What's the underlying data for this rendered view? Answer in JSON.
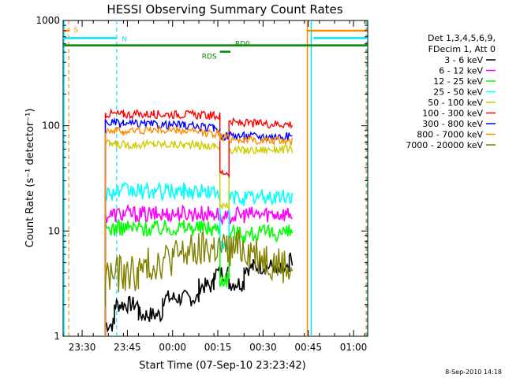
{
  "chart_data": {
    "type": "line",
    "title": "HESSI Observing Summary Count Rates",
    "xlabel": "Start Time (07-Sep-10 23:23:42)",
    "ylabel": "Count Rate (s⁻¹ detector⁻¹)",
    "yscale": "log",
    "ylim": [
      1,
      1000
    ],
    "xlim_minutes_after_start": [
      0,
      101
    ],
    "x_ticks": [
      "23:30",
      "23:45",
      "00:00",
      "00:15",
      "00:30",
      "00:45",
      "01:00"
    ],
    "x_tick_minutes_after_start": [
      6.3,
      21.3,
      36.3,
      51.3,
      66.3,
      81.3,
      96.3
    ],
    "y_ticks": [
      "1",
      "10",
      "100",
      "1000"
    ],
    "y_tick_values": [
      1,
      10,
      100,
      1000
    ],
    "legend_header": [
      "Det 1,3,4,5,6,9,",
      "FDecim 1, Att 0"
    ],
    "legend_position": "right",
    "flags": {
      "saa": {
        "label": "S",
        "color": "#ff8c00",
        "segments": [
          [
            0,
            2.2
          ],
          [
            81,
            101
          ]
        ],
        "level": 800
      },
      "night": {
        "label": "N",
        "color": "#00e5ff",
        "segments": [
          [
            0,
            17.8
          ],
          [
            83,
            101
          ]
        ],
        "level": 680
      },
      "rd0": {
        "label": "RD0",
        "color": "#008800",
        "segments": [
          [
            0,
            101
          ]
        ],
        "level": 580
      },
      "rds": {
        "label": "RDS",
        "color": "#008800",
        "segments": [
          [
            52,
            55.5
          ]
        ],
        "level": 505
      }
    },
    "orbit_markers": {
      "solid_cyan_minutes": [
        0,
        82
      ],
      "dashed_cyan_minutes": [
        18,
        101
      ],
      "dashed_orange_minutes": [
        2.4,
        101
      ],
      "solid_orange_minutes": [
        81
      ]
    },
    "series": [
      {
        "name": "3 - 6 keV",
        "color": "#000000",
        "x": [
          14,
          17,
          17,
          25,
          25,
          33,
          33,
          45,
          45,
          50,
          50,
          55,
          55,
          60,
          60,
          63,
          63,
          70,
          70,
          75,
          75,
          76
        ],
        "y": [
          1.3,
          1.3,
          2,
          2,
          1.6,
          1.6,
          2.3,
          2.3,
          3,
          3,
          4,
          4,
          3.2,
          3.2,
          4.5,
          4.5,
          4.6,
          4.6,
          4.1,
          4.1,
          5.5,
          5.5
        ]
      },
      {
        "name": "6 - 12 keV",
        "color": "#ff00ff",
        "x": [
          14,
          20,
          30,
          40,
          50,
          52,
          52,
          55,
          55,
          60,
          70,
          76
        ],
        "y": [
          14,
          14.6,
          14.3,
          14.8,
          14.5,
          14.5,
          13,
          13,
          14,
          14.2,
          14.6,
          14.6
        ]
      },
      {
        "name": "12 - 25 keV",
        "color": "#00ff00",
        "x": [
          14,
          20,
          30,
          40,
          50,
          52,
          52,
          55,
          55,
          60,
          70,
          76
        ],
        "y": [
          10.5,
          10.8,
          10.6,
          10.9,
          10.6,
          10.6,
          3.5,
          3.5,
          9.8,
          9.3,
          9.6,
          9.6
        ]
      },
      {
        "name": "25 - 50 keV",
        "color": "#00ffff",
        "x": [
          14,
          20,
          30,
          40,
          50,
          52,
          52,
          55,
          55,
          60,
          70,
          76
        ],
        "y": [
          23,
          24,
          23.5,
          24,
          23.5,
          23.5,
          6.8,
          6.8,
          21,
          20.5,
          21,
          21
        ]
      },
      {
        "name": "50 - 100 keV",
        "color": "#cccc00",
        "x": [
          14,
          20,
          30,
          40,
          50,
          52,
          52,
          55,
          55,
          60,
          70,
          76
        ],
        "y": [
          68,
          66,
          67,
          66,
          64,
          64,
          17,
          17,
          60,
          58,
          60,
          60
        ]
      },
      {
        "name": "100 - 300 keV",
        "color": "#ff0000",
        "x": [
          14,
          20,
          30,
          40,
          50,
          52,
          52,
          55,
          55,
          60,
          70,
          76
        ],
        "y": [
          130,
          128,
          129,
          128,
          124,
          124,
          36,
          36,
          108,
          105,
          104,
          104
        ]
      },
      {
        "name": "300 - 800 keV",
        "color": "#0000ff",
        "x": [
          14,
          20,
          30,
          40,
          50,
          52,
          52,
          55,
          55,
          60,
          70,
          76
        ],
        "y": [
          108,
          104,
          103,
          101,
          94,
          94,
          80,
          80,
          82,
          80,
          79,
          79
        ]
      },
      {
        "name": "800 - 7000 keV",
        "color": "#ff8c00",
        "x": [
          14,
          20,
          30,
          40,
          50,
          52,
          52,
          55,
          55,
          60,
          70,
          76
        ],
        "y": [
          92,
          88,
          92,
          89,
          85,
          85,
          78,
          78,
          76,
          73,
          72,
          72
        ]
      },
      {
        "name": "7000 - 20000 keV",
        "color": "#808000",
        "x": [
          14,
          25,
          30,
          40,
          45,
          50,
          55,
          60,
          70,
          76
        ],
        "y": [
          3.8,
          4,
          5,
          6,
          6.5,
          7,
          6.5,
          7,
          5,
          4.5
        ]
      }
    ]
  },
  "footer_date": "8-Sep-2010 14:18"
}
